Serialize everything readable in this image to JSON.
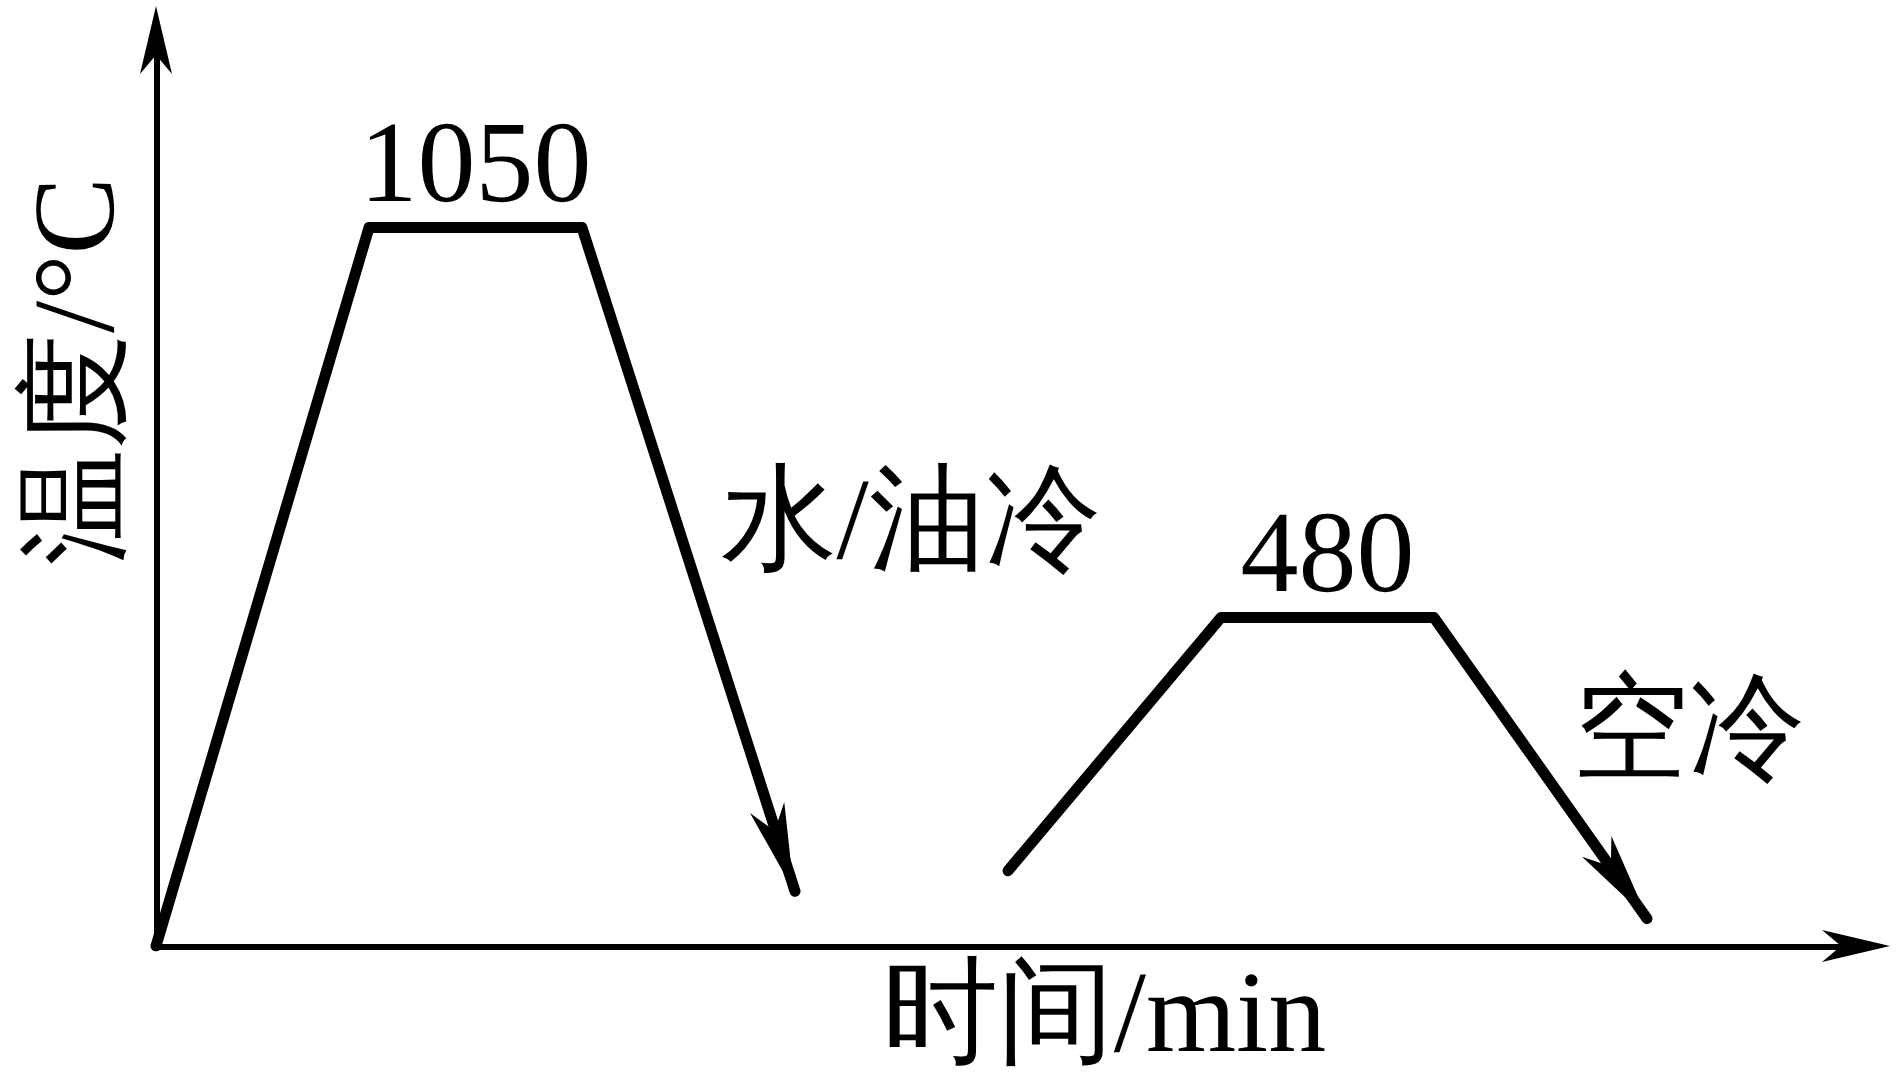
{
  "chart_data": {
    "type": "line",
    "xlabel": "时间/min",
    "ylabel": "温度/°C",
    "categories": [
      null,
      null,
      null,
      null,
      null,
      null,
      null,
      null,
      null
    ],
    "ylim": [
      0,
      1330
    ],
    "series": [
      {
        "color": "#000000",
        "values": [
          0,
          1050,
          1050,
          80,
          null,
          null,
          null,
          null,
          null
        ],
        "value_labels": [
          null,
          "1050",
          null,
          null,
          null,
          null,
          null,
          null,
          null
        ]
      },
      {
        "color": "#000000",
        "values": [
          null,
          null,
          null,
          null,
          110,
          480,
          480,
          40,
          null
        ],
        "value_labels": [
          null,
          null,
          null,
          null,
          null,
          "480",
          null,
          null,
          null
        ]
      }
    ],
    "annotations": [
      "水/油冷",
      "空冷"
    ],
    "tick_labels": false
  }
}
